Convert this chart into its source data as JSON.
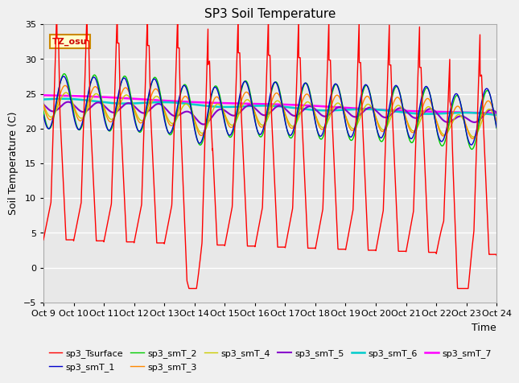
{
  "title": "SP3 Soil Temperature",
  "xlabel": "Time",
  "ylabel": "Soil Temperature (C)",
  "ylim": [
    -5,
    35
  ],
  "xlim": [
    0,
    15
  ],
  "x_tick_labels": [
    "Oct 9",
    "Oct 10",
    "Oct 11",
    "Oct 12",
    "Oct 13",
    "Oct 14",
    "Oct 15",
    "Oct 16",
    "Oct 17",
    "Oct 18",
    "Oct 19",
    "Oct 20",
    "Oct 21",
    "Oct 22",
    "Oct 23",
    "Oct 24"
  ],
  "annotation_text": "TZ_osu",
  "series_colors": {
    "sp3_Tsurface": "#ff0000",
    "sp3_smT_1": "#0000cc",
    "sp3_smT_2": "#00cc00",
    "sp3_smT_3": "#ff8800",
    "sp3_smT_4": "#cccc00",
    "sp3_smT_5": "#8800cc",
    "sp3_smT_6": "#00cccc",
    "sp3_smT_7": "#ff00ff"
  },
  "background_color": "#e8e8e8",
  "grid_color": "#ffffff",
  "title_fontsize": 11,
  "label_fontsize": 9,
  "tick_fontsize": 8
}
